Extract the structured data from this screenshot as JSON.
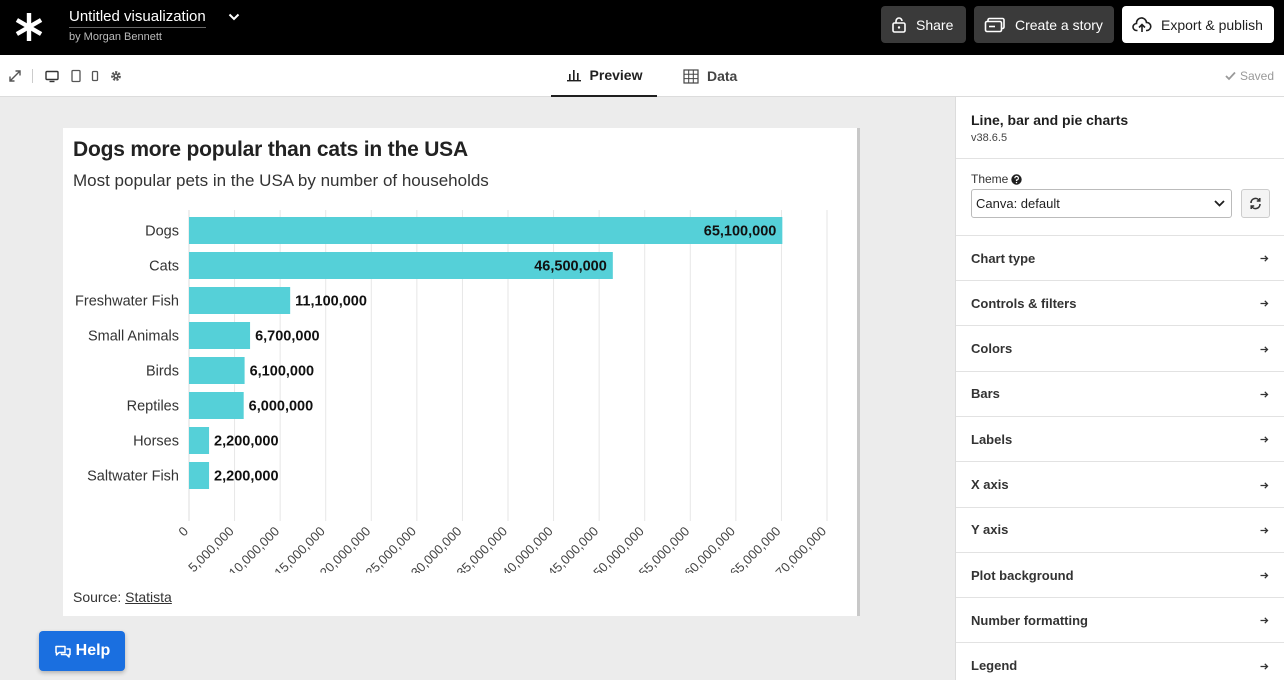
{
  "header": {
    "doc_title": "Untitled visualization",
    "author": "by Morgan Bennett",
    "share_label": "Share",
    "story_label": "Create a story",
    "export_label": "Export & publish"
  },
  "toolbar": {
    "tabs": [
      {
        "label": "Preview",
        "active": true
      },
      {
        "label": "Data",
        "active": false
      }
    ],
    "saved_label": "Saved"
  },
  "chart": {
    "title": "Dogs more popular than cats in the USA",
    "subtitle": "Most popular pets in the USA by number of households",
    "source_prefix": "Source: ",
    "source_link": "Statista"
  },
  "chart_data": {
    "type": "bar",
    "orientation": "horizontal",
    "categories": [
      "Dogs",
      "Cats",
      "Freshwater Fish",
      "Small Animals",
      "Birds",
      "Reptiles",
      "Horses",
      "Saltwater Fish"
    ],
    "values": [
      65100000,
      46500000,
      11100000,
      6700000,
      6100000,
      6000000,
      2200000,
      2200000
    ],
    "value_labels": [
      "65,100,000",
      "46,500,000",
      "11,100,000",
      "6,700,000",
      "6,100,000",
      "6,000,000",
      "2,200,000",
      "2,200,000"
    ],
    "xlim": [
      0,
      70000000
    ],
    "xticks": [
      0,
      5000000,
      10000000,
      15000000,
      20000000,
      25000000,
      30000000,
      35000000,
      40000000,
      45000000,
      50000000,
      55000000,
      60000000,
      65000000,
      70000000
    ],
    "xtick_labels": [
      "0",
      "5,000,000",
      "10,000,000",
      "15,000,000",
      "20,000,000",
      "25,000,000",
      "30,000,000",
      "35,000,000",
      "40,000,000",
      "45,000,000",
      "50,000,000",
      "55,000,000",
      "60,000,000",
      "65,000,000",
      "70,000,000"
    ],
    "grid": true,
    "bar_color": "#55d0d8"
  },
  "help_label": "Help",
  "panel": {
    "title": "Line, bar and pie charts",
    "version": "v38.6.5",
    "theme_label": "Theme",
    "theme_value": "Canva: default",
    "sections": [
      "Chart type",
      "Controls & filters",
      "Colors",
      "Bars",
      "Labels",
      "X axis",
      "Y axis",
      "Plot background",
      "Number formatting",
      "Legend"
    ]
  }
}
